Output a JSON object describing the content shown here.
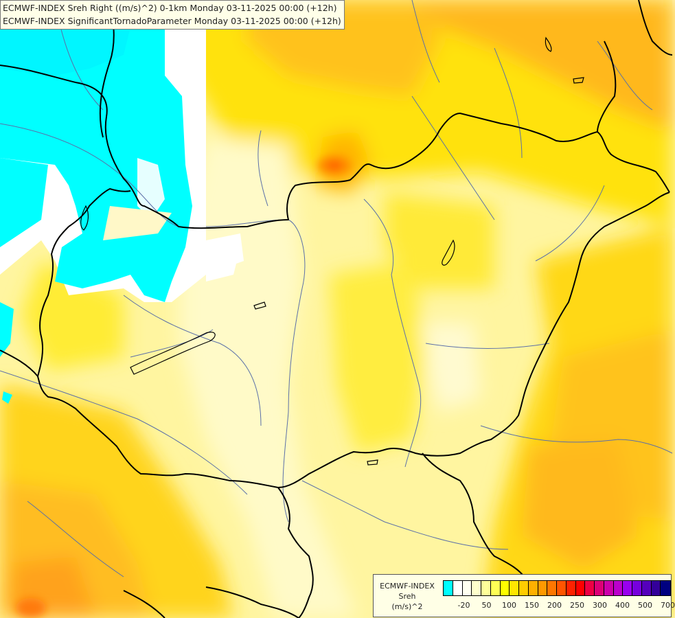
{
  "title": {
    "line1": "ECMWF-INDEX Sreh Right ((m/s)^2) 0-1km Monday 03-11-2025 00:00 (+12h)",
    "line2": "ECMWF-INDEX SignificantTornadoParameter Monday 03-11-2025 00:00 (+12h)"
  },
  "legend": {
    "line1": "ECMWF-INDEX",
    "line2": "Sreh",
    "line3": "(m/s)^2",
    "colors": [
      "#00ffff",
      "#ffffff",
      "#fffff0",
      "#ffffcc",
      "#ffff99",
      "#ffff55",
      "#ffff00",
      "#ffe600",
      "#ffcc00",
      "#ffb000",
      "#ff9900",
      "#ff7700",
      "#ff5500",
      "#ff2200",
      "#ff0000",
      "#ee0044",
      "#dd0077",
      "#cc00aa",
      "#bb00cc",
      "#9900ee",
      "#7700dd",
      "#5500bb",
      "#330099",
      "#000080"
    ],
    "ticks": [
      {
        "label": "-20",
        "index": 1
      },
      {
        "label": "50",
        "index": 3
      },
      {
        "label": "100",
        "index": 5
      },
      {
        "label": "150",
        "index": 7
      },
      {
        "label": "200",
        "index": 9
      },
      {
        "label": "250",
        "index": 11
      },
      {
        "label": "300",
        "index": 13
      },
      {
        "label": "400",
        "index": 15
      },
      {
        "label": "500",
        "index": 17
      },
      {
        "label": "700",
        "index": 19
      }
    ]
  }
}
